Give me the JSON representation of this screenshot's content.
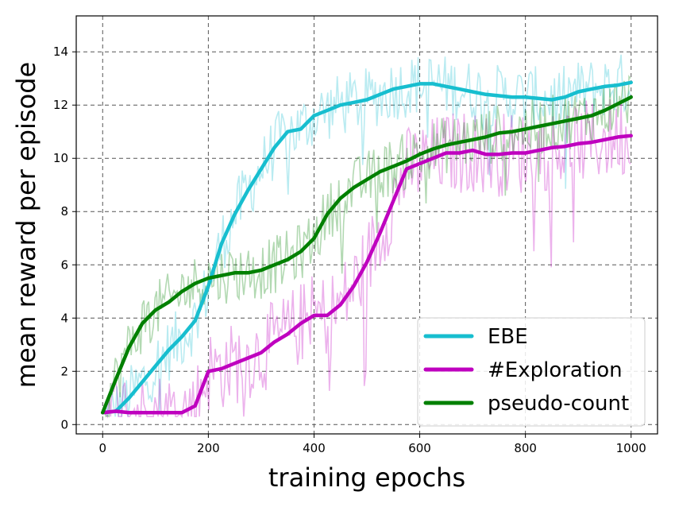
{
  "chart_data": {
    "type": "line",
    "title": "",
    "xlabel": "training epochs",
    "ylabel": "mean reward per episode",
    "xlim": [
      -50,
      1050
    ],
    "ylim": [
      -0.35,
      15.35
    ],
    "xticks": [
      0,
      200,
      400,
      600,
      800,
      1000
    ],
    "yticks": [
      0,
      2,
      4,
      6,
      8,
      10,
      12,
      14
    ],
    "grid": true,
    "grid_style": "dashed",
    "legend_position": "lower-right",
    "x": [
      0,
      25,
      50,
      75,
      100,
      125,
      150,
      175,
      200,
      225,
      250,
      275,
      300,
      325,
      350,
      375,
      400,
      425,
      450,
      475,
      500,
      525,
      550,
      575,
      600,
      625,
      650,
      675,
      700,
      725,
      750,
      775,
      800,
      825,
      850,
      875,
      900,
      925,
      950,
      975,
      1000
    ],
    "series": [
      {
        "name": "EBE",
        "color": "#17becf",
        "values": [
          0.45,
          0.5,
          1.0,
          1.6,
          2.2,
          2.8,
          3.3,
          3.9,
          5.2,
          6.8,
          7.9,
          8.8,
          9.6,
          10.4,
          11.0,
          11.1,
          11.6,
          11.8,
          12.0,
          12.1,
          12.2,
          12.4,
          12.6,
          12.7,
          12.8,
          12.8,
          12.7,
          12.6,
          12.5,
          12.4,
          12.35,
          12.3,
          12.3,
          12.25,
          12.2,
          12.3,
          12.5,
          12.6,
          12.7,
          12.75,
          12.85
        ],
        "noise_band": 1.2
      },
      {
        "name": "#Exploration",
        "color": "#bf00bf",
        "values": [
          0.45,
          0.5,
          0.45,
          0.45,
          0.45,
          0.45,
          0.45,
          0.7,
          2.0,
          2.1,
          2.3,
          2.5,
          2.7,
          3.1,
          3.4,
          3.8,
          4.1,
          4.1,
          4.5,
          5.2,
          6.1,
          7.2,
          8.4,
          9.6,
          9.8,
          10.0,
          10.2,
          10.2,
          10.3,
          10.15,
          10.15,
          10.2,
          10.2,
          10.3,
          10.4,
          10.45,
          10.55,
          10.6,
          10.7,
          10.8,
          10.85
        ],
        "noise_band": 1.6
      },
      {
        "name": "pseudo-count",
        "color": "#008000",
        "values": [
          0.45,
          1.7,
          2.9,
          3.8,
          4.3,
          4.6,
          5.0,
          5.3,
          5.5,
          5.6,
          5.7,
          5.7,
          5.8,
          6.0,
          6.2,
          6.5,
          7.0,
          7.9,
          8.5,
          8.9,
          9.2,
          9.5,
          9.7,
          9.9,
          10.15,
          10.35,
          10.5,
          10.6,
          10.7,
          10.8,
          10.95,
          11.0,
          11.1,
          11.2,
          11.3,
          11.4,
          11.5,
          11.6,
          11.8,
          12.05,
          12.3
        ],
        "noise_band": 1.1
      }
    ]
  }
}
